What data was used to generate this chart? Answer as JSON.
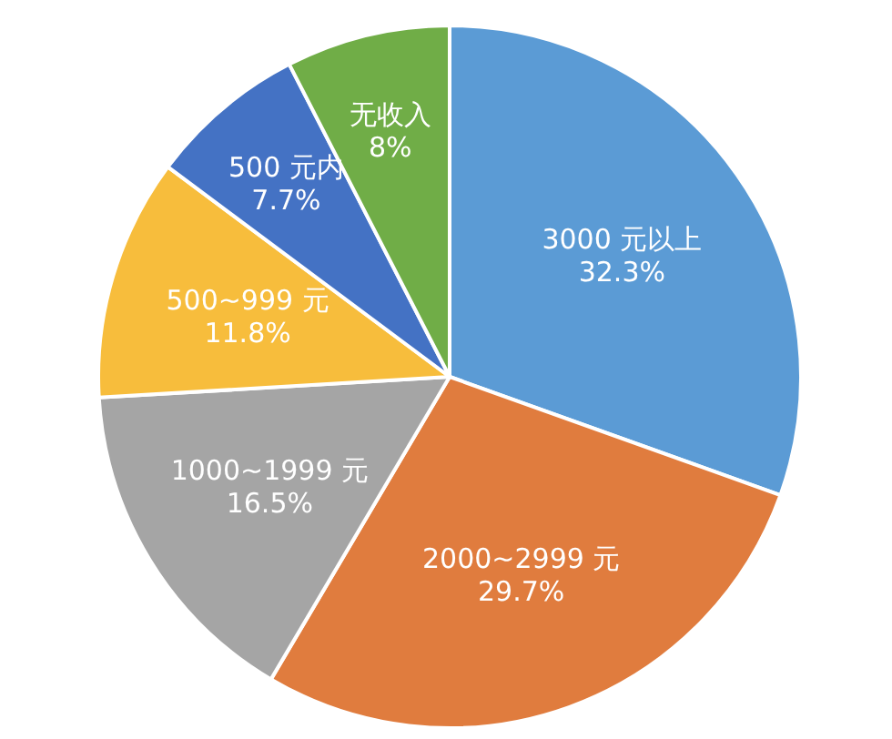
{
  "chart_data": {
    "type": "pie",
    "categories": [
      "3000 元以上",
      "2000~2999 元",
      "1000~1999 元",
      "500~999 元",
      "500 元内",
      "无收入"
    ],
    "values": [
      32.3,
      29.7,
      16.5,
      11.8,
      7.7,
      8
    ],
    "value_labels": [
      "32.3%",
      "29.7%",
      "16.5%",
      "11.8%",
      "7.7%",
      "8%"
    ],
    "colors": [
      "#5b9bd5",
      "#e07c3e",
      "#a5a5a5",
      "#f7bd3c",
      "#4472c4",
      "#70ad47"
    ]
  }
}
